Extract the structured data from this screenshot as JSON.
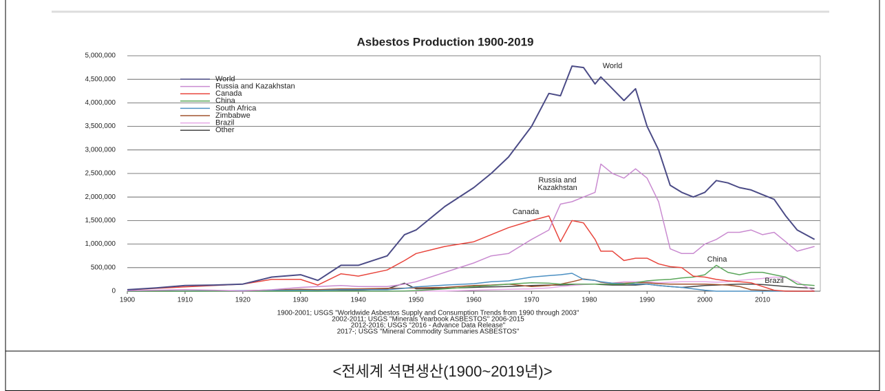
{
  "chart_data": {
    "type": "line",
    "title": "Asbestos Production 1900-2019",
    "x": [
      1900,
      1905,
      1910,
      1915,
      1920,
      1925,
      1930,
      1933,
      1937,
      1940,
      1945,
      1948,
      1950,
      1955,
      1960,
      1963,
      1966,
      1970,
      1973,
      1975,
      1977,
      1979,
      1981,
      1982,
      1984,
      1986,
      1988,
      1990,
      1992,
      1994,
      1996,
      1998,
      2000,
      2002,
      2004,
      2006,
      2008,
      2010,
      2012,
      2014,
      2016,
      2019
    ],
    "series": [
      {
        "name": "World",
        "color": "#4b4b86",
        "values": [
          30000,
          70000,
          120000,
          130000,
          150000,
          300000,
          350000,
          230000,
          550000,
          550000,
          750000,
          1200000,
          1300000,
          1800000,
          2200000,
          2500000,
          2850000,
          3500000,
          4200000,
          4150000,
          4780000,
          4750000,
          4400000,
          4550000,
          4300000,
          4050000,
          4300000,
          3500000,
          3000000,
          2250000,
          2100000,
          2000000,
          2100000,
          2350000,
          2300000,
          2200000,
          2150000,
          2050000,
          1950000,
          1600000,
          1300000,
          1100000
        ]
      },
      {
        "name": "Russia and Kazakhstan",
        "color": "#c98ad0",
        "values": [
          10000,
          20000,
          30000,
          20000,
          5000,
          30000,
          80000,
          100000,
          120000,
          100000,
          100000,
          150000,
          200000,
          400000,
          600000,
          750000,
          800000,
          1100000,
          1300000,
          1850000,
          1900000,
          2000000,
          2100000,
          2700000,
          2500000,
          2400000,
          2600000,
          2400000,
          1900000,
          900000,
          800000,
          800000,
          1000000,
          1100000,
          1250000,
          1250000,
          1300000,
          1200000,
          1250000,
          1050000,
          850000,
          950000
        ]
      },
      {
        "name": "Canada",
        "color": "#e8453c",
        "values": [
          25000,
          60000,
          90000,
          120000,
          150000,
          250000,
          250000,
          130000,
          370000,
          320000,
          450000,
          650000,
          800000,
          950000,
          1050000,
          1200000,
          1350000,
          1500000,
          1600000,
          1050000,
          1500000,
          1450000,
          1100000,
          850000,
          850000,
          650000,
          700000,
          700000,
          580000,
          520000,
          500000,
          320000,
          300000,
          250000,
          220000,
          200000,
          180000,
          100000,
          20000,
          0,
          0,
          0
        ]
      },
      {
        "name": "China",
        "color": "#5aa65a",
        "values": [
          0,
          0,
          0,
          0,
          0,
          0,
          0,
          0,
          0,
          0,
          0,
          5000,
          10000,
          50000,
          100000,
          120000,
          150000,
          180000,
          170000,
          150000,
          150000,
          150000,
          150000,
          150000,
          150000,
          150000,
          180000,
          220000,
          240000,
          250000,
          280000,
          300000,
          350000,
          550000,
          400000,
          350000,
          400000,
          400000,
          350000,
          300000,
          150000,
          120000
        ]
      },
      {
        "name": "South Africa",
        "color": "#4a8fc2",
        "values": [
          0,
          2000,
          5000,
          8000,
          10000,
          15000,
          20000,
          15000,
          30000,
          30000,
          30000,
          60000,
          90000,
          130000,
          160000,
          200000,
          220000,
          300000,
          330000,
          350000,
          380000,
          250000,
          230000,
          200000,
          170000,
          160000,
          150000,
          150000,
          120000,
          100000,
          80000,
          50000,
          20000,
          0,
          0,
          0,
          0,
          0,
          0,
          0,
          0,
          0
        ]
      },
      {
        "name": "Zimbabwe",
        "color": "#a0522d",
        "values": [
          0,
          0,
          5000,
          8000,
          10000,
          25000,
          40000,
          30000,
          50000,
          50000,
          60000,
          65000,
          70000,
          80000,
          120000,
          130000,
          150000,
          100000,
          120000,
          150000,
          200000,
          260000,
          230000,
          190000,
          170000,
          170000,
          180000,
          180000,
          160000,
          150000,
          150000,
          150000,
          150000,
          140000,
          130000,
          100000,
          30000,
          20000,
          10000,
          5000,
          0,
          0
        ]
      },
      {
        "name": "Brazil",
        "color": "#e6a8e6",
        "values": [
          0,
          0,
          0,
          0,
          0,
          0,
          0,
          0,
          0,
          0,
          0,
          0,
          0,
          5000,
          20000,
          30000,
          40000,
          50000,
          70000,
          100000,
          120000,
          140000,
          150000,
          150000,
          170000,
          200000,
          200000,
          200000,
          180000,
          190000,
          200000,
          200000,
          200000,
          190000,
          200000,
          230000,
          250000,
          270000,
          300000,
          290000,
          200000,
          0
        ]
      },
      {
        "name": "Other",
        "color": "#444444",
        "values": [
          0,
          0,
          0,
          0,
          0,
          0,
          0,
          0,
          10000,
          20000,
          50000,
          170000,
          50000,
          60000,
          80000,
          90000,
          100000,
          120000,
          130000,
          130000,
          140000,
          150000,
          150000,
          140000,
          130000,
          130000,
          130000,
          150000,
          120000,
          100000,
          80000,
          100000,
          120000,
          130000,
          140000,
          150000,
          150000,
          140000,
          120000,
          100000,
          80000,
          60000
        ]
      }
    ],
    "xlim": [
      1900,
      2020
    ],
    "ylim": [
      0,
      5000000
    ],
    "xticks": [
      1900,
      1910,
      1920,
      1930,
      1940,
      1950,
      1960,
      1970,
      1980,
      1990,
      2000,
      2010
    ],
    "yticks": [
      0,
      {
        "value": 500000,
        "label": "500,000"
      },
      {
        "value": 1000000,
        "label": "1,000,000"
      },
      {
        "value": 1500000,
        "label": "1,500,000"
      },
      {
        "value": 2000000,
        "label": "2,000,000"
      },
      {
        "value": 2500000,
        "label": "2,500,000"
      },
      {
        "value": 3000000,
        "label": "3,000,000"
      },
      {
        "value": 3500000,
        "label": "3,500,000"
      },
      {
        "value": 4000000,
        "label": "4,000,000"
      },
      {
        "value": 4500000,
        "label": "4,500,000"
      },
      {
        "value": 5000000,
        "label": "5,000,000"
      }
    ],
    "grid": true,
    "legend": "upper left",
    "annotations": [
      {
        "lines": [
          "World"
        ]
      },
      {
        "lines": [
          "Russia and",
          "Kazakhstan"
        ]
      },
      {
        "lines": [
          "Canada"
        ]
      },
      {
        "lines": [
          "China"
        ]
      },
      {
        "lines": [
          "Brazil"
        ]
      }
    ],
    "sources": [
      "1900-2001; USGS \"Worldwide Asbestos Supply and Consumption Trends from 1990 through 2003\"",
      "2002-2011; USGS \"Minerals Yearbook ASBESTOS\" 2006-2015",
      "2012-2016; USGS \"2016 - Advance Data Release\"",
      "2017-; USGS \"Mineral Commodity Summaries ASBESTOS\""
    ]
  },
  "caption": "<전세계  석면생산(1900~2019년)>"
}
